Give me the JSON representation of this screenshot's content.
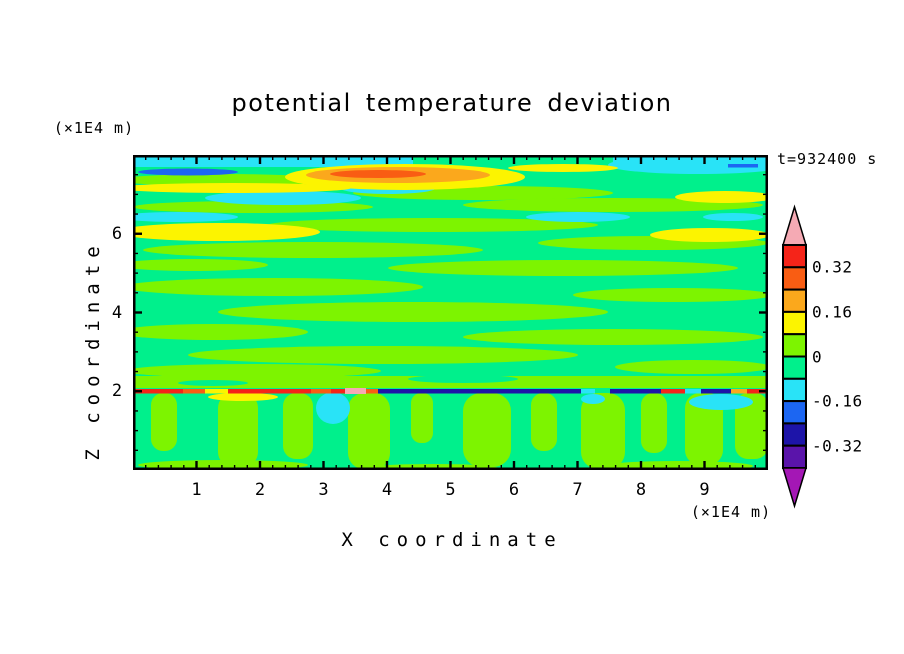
{
  "colors": {
    "pink": "#f5aab4",
    "red": "#f52419",
    "orangered": "#f95d13",
    "orange": "#fba81c",
    "yellow": "#fcf400",
    "chartreuse": "#7df400",
    "springgreen": "#00f08c",
    "cyan": "#29e3f7",
    "blue": "#1c66f2",
    "navy": "#1d14a8",
    "indigo": "#5a14aa",
    "magenta": "#a417b5",
    "frame": "#000000"
  },
  "figure": {
    "title": "potential temperature deviation",
    "time_label": "t=932400 s"
  },
  "axes": {
    "x": {
      "label": "X coordinate",
      "unit_label": "(×1E4 m)",
      "range": [
        0,
        10
      ],
      "tick_values": [
        1,
        2,
        3,
        4,
        5,
        6,
        7,
        8,
        9
      ],
      "tick_labels": [
        "1",
        "2",
        "3",
        "4",
        "5",
        "6",
        "7",
        "8",
        "9"
      ],
      "minor_step": 0.2
    },
    "z": {
      "label": "Z coordinate",
      "unit_label": "(×1E4 m)",
      "range": [
        0,
        8
      ],
      "tick_values": [
        2,
        4,
        6
      ],
      "tick_labels": [
        "2",
        "4",
        "6"
      ],
      "minor_step": 0.5
    }
  },
  "colorbar": {
    "labels": [
      "0.32",
      "0.16",
      "0",
      "-0.16",
      "-0.32"
    ],
    "label_values": [
      0.32,
      0.16,
      0,
      -0.16,
      -0.32
    ],
    "segment_colors_top_to_bottom": [
      "#f52419",
      "#f95d13",
      "#fba81c",
      "#fcf400",
      "#7df400",
      "#00f08c",
      "#29e3f7",
      "#1c66f2",
      "#1d14a8",
      "#5a14aa"
    ],
    "segment_value_ranges_top_to_bottom": [
      [
        0.32,
        0.4
      ],
      [
        0.24,
        0.32
      ],
      [
        0.16,
        0.24
      ],
      [
        0.08,
        0.16
      ],
      [
        0,
        0.08
      ],
      [
        -0.08,
        0
      ],
      [
        -0.16,
        -0.08
      ],
      [
        -0.24,
        -0.16
      ],
      [
        -0.32,
        -0.24
      ],
      [
        -0.4,
        -0.32
      ]
    ],
    "arrow_top_color": "#f5aab4",
    "arrow_bottom_color": "#a417b5"
  },
  "chart_data": {
    "type": "heatmap",
    "subtype": "filled-contour",
    "title": "potential temperature deviation",
    "xlabel": "X coordinate",
    "ylabel": "Z coordinate",
    "x_unit": "(×1E4 m)",
    "z_unit": "(×1E4 m)",
    "x_range": [
      0,
      10
    ],
    "z_range": [
      0,
      8
    ],
    "time_annotation": "t=932400 s",
    "contour_interval": 0.08,
    "levels": [
      -0.4,
      -0.32,
      -0.24,
      -0.16,
      -0.08,
      0,
      0.08,
      0.16,
      0.24,
      0.32,
      0.4
    ],
    "palette_low_to_high": [
      "#a417b5",
      "#5a14aa",
      "#1d14a8",
      "#1c66f2",
      "#29e3f7",
      "#00f08c",
      "#7df400",
      "#fcf400",
      "#fba81c",
      "#f95d13",
      "#f52419",
      "#f5aab4"
    ],
    "legend_position": "right",
    "grid": false,
    "features": [
      "field is near zero over most of the domain: spring-green (-0.08 to 0) background interleaved with long horizontal yellow-green (0 to 0.08) wave streaks",
      "warm anomaly reaching 0.24-0.32 (orange/red core inside yellow) near the top boundary at x≈3-4.5, z≈7.5",
      "cold cyan band (-0.16 to -0.08) along the top boundary with a blue streak (-0.24 to -0.16) at x≈0.2-1.5 and a short blue dash near x≈9.7",
      "yellow streaks (0.08-0.16) in the upper-left at z≈5.5-6.6 and on the right near z≈6-6.5",
      "thin cyan streaks (-0.16 to -0.08) scattered between z≈5 and z≈7",
      "sharp inversion sheet at z≈2: red/orange/pink extremes (>0.32) on the left and far right, dark navy (-0.32 to -0.24) through the centre, cyan patches beneath",
      "below z≈2: convective boundary layer with yellow-green plumes (0 to 0.08) rising into the inversion over a spring-green background"
    ]
  }
}
